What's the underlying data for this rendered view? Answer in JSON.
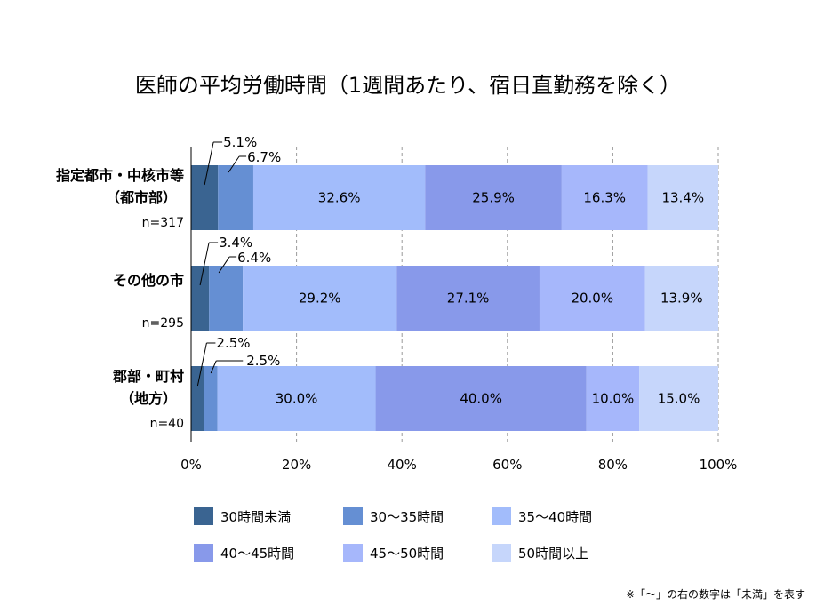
{
  "chart_data": {
    "type": "bar",
    "orientation": "horizontal",
    "stacked": true,
    "title": "医師の平均労働時間（1週間あたり、宿日直勤務を除く）",
    "categories": [
      {
        "label_lines": [
          "指定都市・中核市等",
          "（都市部）"
        ],
        "n": "n=317"
      },
      {
        "label_lines": [
          "その他の市"
        ],
        "n": "n=295"
      },
      {
        "label_lines": [
          "郡部・町村",
          "（地方）"
        ],
        "n": "n=40"
      }
    ],
    "series": [
      {
        "name": "30時間未満",
        "color": "#3a6491",
        "values": [
          5.1,
          3.4,
          2.5
        ]
      },
      {
        "name": "30～35時間",
        "color": "#658fd3",
        "values": [
          6.7,
          6.4,
          2.5
        ]
      },
      {
        "name": "35～40時間",
        "color": "#a2bcfb",
        "values": [
          32.6,
          29.2,
          30.0
        ]
      },
      {
        "name": "40～45時間",
        "color": "#8899ea",
        "values": [
          25.9,
          27.1,
          40.0
        ]
      },
      {
        "name": "45～50時間",
        "color": "#a6b7fb",
        "values": [
          16.3,
          20.0,
          10.0
        ]
      },
      {
        "name": "50時間以上",
        "color": "#c6d6fb",
        "values": [
          13.4,
          13.9,
          15.0
        ]
      }
    ],
    "value_labels": [
      [
        "5.1%",
        "6.7%",
        "32.6%",
        "25.9%",
        "16.3%",
        "13.4%"
      ],
      [
        "3.4%",
        "6.4%",
        "29.2%",
        "27.1%",
        "20.0%",
        "13.9%"
      ],
      [
        "2.5%",
        "2.5%",
        "30.0%",
        "40.0%",
        "10.0%",
        "15.0%"
      ]
    ],
    "xlim": [
      0,
      100
    ],
    "x_ticks": [
      "0%",
      "20%",
      "40%",
      "60%",
      "80%",
      "100%"
    ],
    "grid": "vertical-dashed",
    "legend_position": "bottom"
  },
  "note": "※「～」の右の数字は「未満」を表す"
}
